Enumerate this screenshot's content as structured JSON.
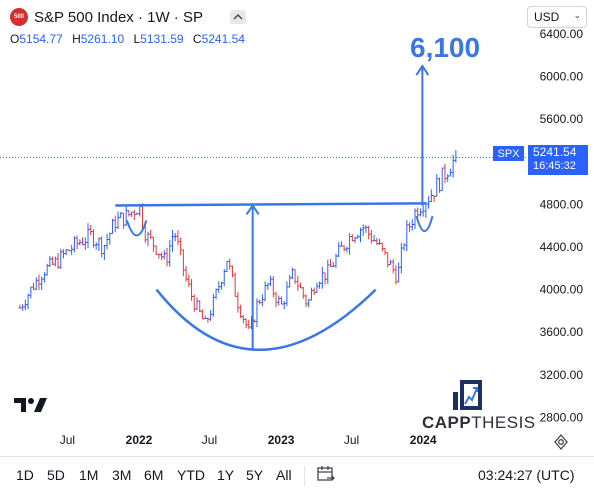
{
  "header": {
    "symbol_badge": "500",
    "title": "S&P 500 Index · 1W · SP",
    "ohlc": {
      "o_label": "O",
      "o_value": "5154.77",
      "h_label": "H",
      "h_value": "5261.10",
      "l_label": "L",
      "l_value": "5131.59",
      "c_label": "C",
      "c_value": "5241.54"
    }
  },
  "currency": {
    "value": "USD"
  },
  "annotations": {
    "target_label": "6,100"
  },
  "price_tag": {
    "symbol": "SPX",
    "last_price": "5241.54",
    "countdown": "16:45:32"
  },
  "watermark": {
    "brand_strong": "CAPP",
    "brand_light": "THESIS"
  },
  "bottom_bar": {
    "ranges": [
      "1D",
      "5D",
      "1M",
      "3M",
      "6M",
      "YTD",
      "1Y",
      "5Y",
      "All"
    ],
    "clock": "03:24:27 (UTC)"
  },
  "colors": {
    "up": "#2962ff",
    "down": "#e53935",
    "annotation": "#3a77e6",
    "accent": "#2962ff"
  },
  "icons": [
    "collapse-icon",
    "chevron-down-icon",
    "tradingview-logo-icon",
    "capp-chart-logo-icon",
    "settings-icon",
    "calendar-range-icon"
  ],
  "chart_data": {
    "type": "candlestick",
    "symbol": "SPX",
    "timeframe": "1W",
    "y_axis": {
      "ticks": [
        2800,
        3200,
        3600,
        4000,
        4400,
        4800,
        5200,
        5600,
        6000,
        6400
      ],
      "tick_labels": [
        "2800.00",
        "3200.00",
        "3600.00",
        "4000.00",
        "4400.00",
        "4800.00",
        "5200.00",
        "5600.00",
        "6000.00",
        "6400.00"
      ],
      "range": [
        2700,
        6720
      ]
    },
    "x_axis": {
      "ticks": [
        "2021-07",
        "2022-01",
        "2022-07",
        "2023-01",
        "2023-07",
        "2024-01"
      ],
      "tick_labels": [
        "Jul",
        "2022",
        "Jul",
        "2023",
        "Jul",
        "2024"
      ],
      "range": [
        "2021-02",
        "2024-07"
      ]
    },
    "last_price": 5241.54,
    "price_path": [
      [
        "2021-03-01",
        3830
      ],
      [
        "2021-04-01",
        4020
      ],
      [
        "2021-05-01",
        4180
      ],
      [
        "2021-06-01",
        4250
      ],
      [
        "2021-07-01",
        4360
      ],
      [
        "2021-08-01",
        4450
      ],
      [
        "2021-09-01",
        4510
      ],
      [
        "2021-10-01",
        4400
      ],
      [
        "2021-11-01",
        4640
      ],
      [
        "2021-12-01",
        4690
      ],
      [
        "2022-01-01",
        4790
      ],
      [
        "2022-01-20",
        4500
      ],
      [
        "2022-02-10",
        4420
      ],
      [
        "2022-03-10",
        4260
      ],
      [
        "2022-04-01",
        4560
      ],
      [
        "2022-05-01",
        4100
      ],
      [
        "2022-05-20",
        3900
      ],
      [
        "2022-06-20",
        3670
      ],
      [
        "2022-07-10",
        3860
      ],
      [
        "2022-08-15",
        4290
      ],
      [
        "2022-09-10",
        3900
      ],
      [
        "2022-10-12",
        3580
      ],
      [
        "2022-11-01",
        3870
      ],
      [
        "2022-12-01",
        4060
      ],
      [
        "2023-01-01",
        3840
      ],
      [
        "2023-02-01",
        4150
      ],
      [
        "2023-03-10",
        3860
      ],
      [
        "2023-04-01",
        4100
      ],
      [
        "2023-05-01",
        4160
      ],
      [
        "2023-06-01",
        4360
      ],
      [
        "2023-07-01",
        4520
      ],
      [
        "2023-07-30",
        4590
      ],
      [
        "2023-09-01",
        4450
      ],
      [
        "2023-10-27",
        4120
      ],
      [
        "2023-11-15",
        4500
      ],
      [
        "2023-12-15",
        4760
      ],
      [
        "2024-01-20",
        4890
      ],
      [
        "2024-02-15",
        5030
      ],
      [
        "2024-03-10",
        5170
      ],
      [
        "2024-03-28",
        5241.54
      ]
    ],
    "annotations": [
      {
        "type": "horizontal_line",
        "label": "neckline",
        "from": "2021-11-01",
        "to": "2024-01-10",
        "y_start": 4790,
        "y_end": 4810
      },
      {
        "type": "arc",
        "label": "cup",
        "from": "2022-02-15",
        "to": "2023-09-01",
        "bottom": 3420,
        "bottom_date": "2022-10-20",
        "rim": 4000
      },
      {
        "type": "arrow",
        "label": "cup depth",
        "x": "2022-10-20",
        "from": 3440,
        "to": 4790
      },
      {
        "type": "arrow",
        "label": "target",
        "x": "2023-12-30",
        "from": 4790,
        "to": 6100,
        "text": "6,100"
      },
      {
        "type": "small_arc",
        "from": "2021-12-01",
        "to": "2022-01-20",
        "y": 4650
      },
      {
        "type": "small_arc",
        "from": "2023-12-15",
        "to": "2024-01-25",
        "y": 4690
      }
    ]
  }
}
